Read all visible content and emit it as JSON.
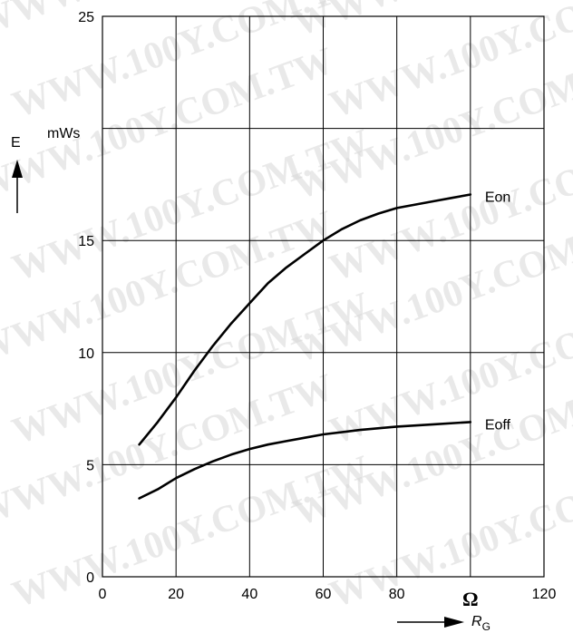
{
  "watermark": "WWW.100Y.COM.TW",
  "chart_data": {
    "type": "line",
    "xlim": [
      0,
      120
    ],
    "ylim": [
      0,
      25
    ],
    "x_ticks": [
      0,
      20,
      40,
      60,
      80,
      120
    ],
    "x_unit": "Ω",
    "xlabel": "R",
    "xlabel_sub": "G",
    "y_ticks": [
      0,
      5,
      10,
      15,
      25
    ],
    "y_unit": "mWs",
    "ylabel": "E",
    "grid": true,
    "colors": {
      "line": "#000000",
      "grid": "#000000",
      "background": "#ffffff"
    },
    "series": [
      {
        "name": "Eon",
        "x": [
          10,
          15,
          20,
          25,
          30,
          35,
          40,
          45,
          50,
          55,
          60,
          65,
          70,
          75,
          80,
          85,
          90,
          95,
          100
        ],
        "y": [
          5.9,
          6.9,
          8.0,
          9.2,
          10.3,
          11.3,
          12.2,
          13.1,
          13.8,
          14.4,
          15.0,
          15.5,
          15.9,
          16.2,
          16.45,
          16.6,
          16.75,
          16.9,
          17.05
        ]
      },
      {
        "name": "Eoff",
        "x": [
          10,
          15,
          20,
          25,
          30,
          35,
          40,
          45,
          50,
          55,
          60,
          70,
          80,
          90,
          100
        ],
        "y": [
          3.5,
          3.9,
          4.4,
          4.8,
          5.15,
          5.45,
          5.7,
          5.9,
          6.05,
          6.2,
          6.35,
          6.55,
          6.7,
          6.8,
          6.9
        ]
      }
    ]
  }
}
